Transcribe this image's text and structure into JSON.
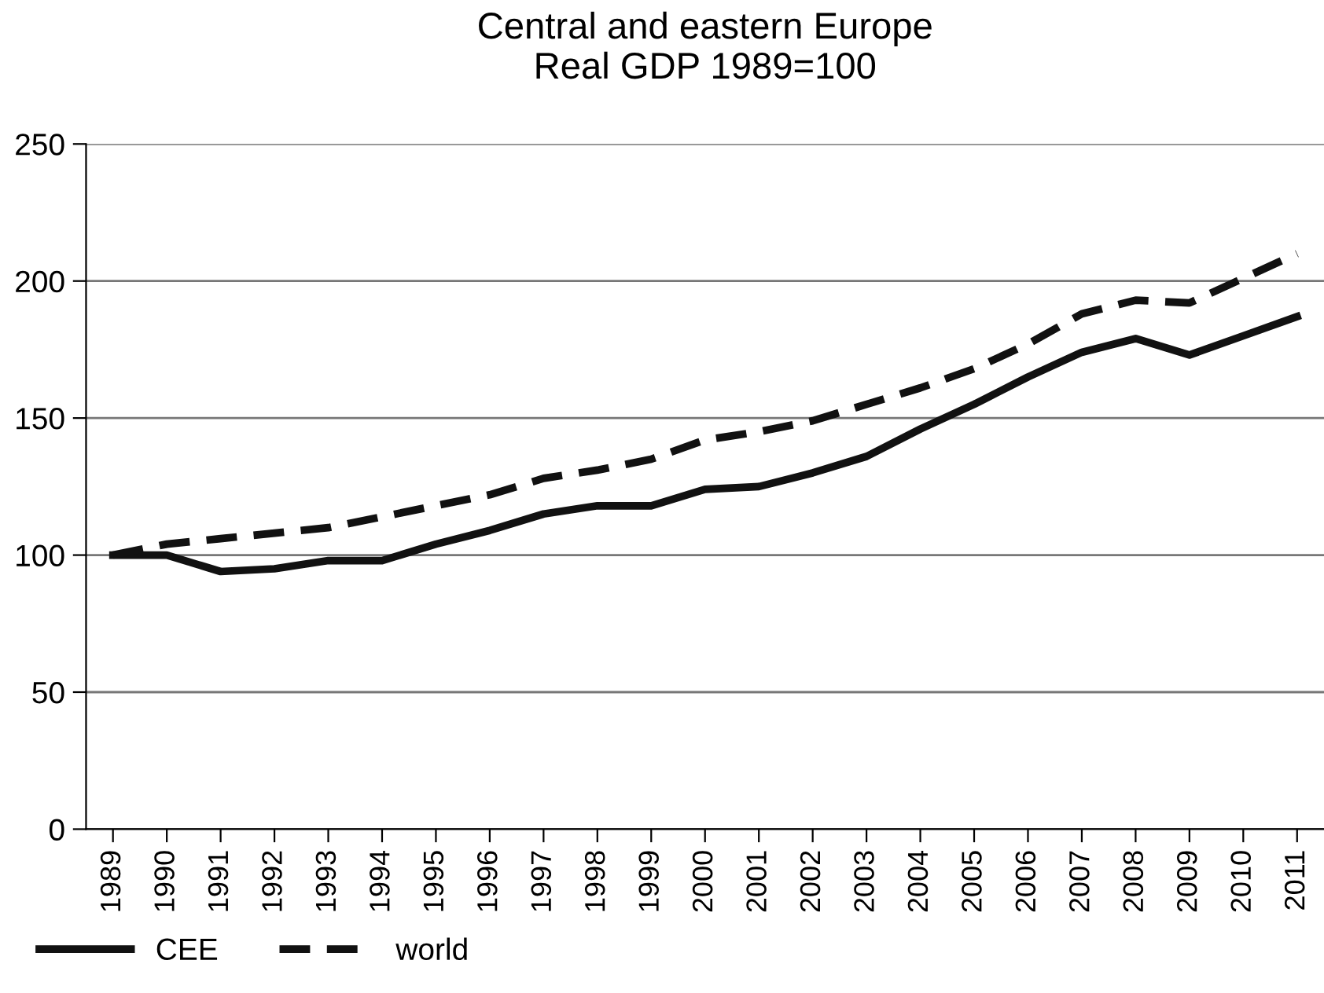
{
  "chart_data": {
    "type": "line",
    "title": "Central and eastern Europe\nReal GDP 1989=100",
    "categories": [
      "1989",
      "1990",
      "1991",
      "1992",
      "1993",
      "1994",
      "1995",
      "1996",
      "1997",
      "1998",
      "1999",
      "2000",
      "2001",
      "2002",
      "2003",
      "2004",
      "2005",
      "2006",
      "2007",
      "2008",
      "2009",
      "2010",
      "2011"
    ],
    "series": [
      {
        "name": "CEE",
        "color": "#111111",
        "line_style": "solid",
        "values": [
          100,
          100,
          94,
          95,
          98,
          98,
          104,
          109,
          115,
          118,
          118,
          124,
          125,
          130,
          136,
          146,
          155,
          165,
          174,
          179,
          173,
          180,
          187
        ]
      },
      {
        "name": "world",
        "color": "#111111",
        "line_style": "dashed",
        "values": [
          100,
          104,
          106,
          108,
          110,
          114,
          118,
          122,
          128,
          131,
          135,
          142,
          145,
          149,
          155,
          161,
          168,
          177,
          188,
          193,
          192,
          201,
          210
        ]
      }
    ],
    "ylim": [
      0,
      250
    ],
    "yticks": [
      0,
      50,
      100,
      150,
      200,
      250
    ],
    "grid": "y",
    "legend": "bottom left"
  }
}
